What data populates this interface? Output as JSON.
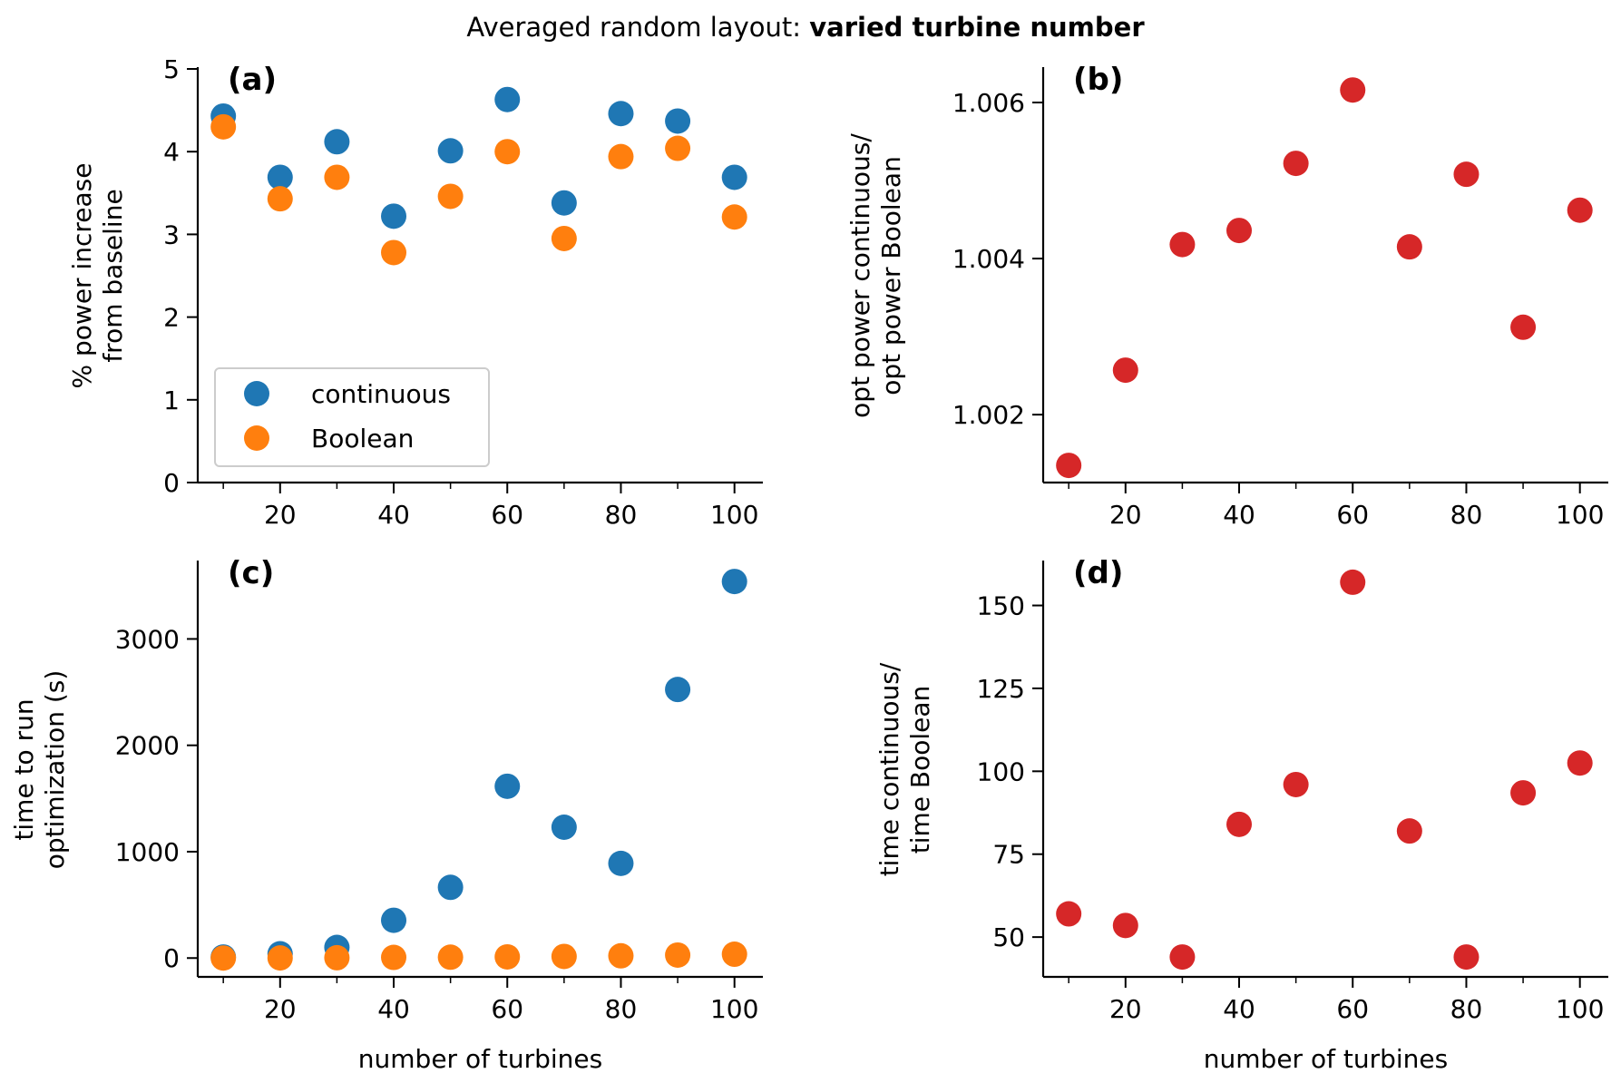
{
  "figure": {
    "title_prefix": "Averaged random layout: ",
    "title_bold": "varied turbine number"
  },
  "colors": {
    "continuous": "#1f77b4",
    "boolean": "#ff7f0e",
    "ratio": "#d62728"
  },
  "chart_data": [
    {
      "type": "scatter",
      "panel": "(a)",
      "ylabel_lines": [
        "% power increase",
        "from baseline"
      ],
      "xlabel": "",
      "xlim": [
        5.5,
        105
      ],
      "ylim": [
        0,
        5
      ],
      "xticks": [
        20,
        40,
        60,
        80,
        100
      ],
      "minor_xticks": [
        10,
        30,
        50,
        70,
        90
      ],
      "yticks": [
        0,
        1,
        2,
        3,
        4,
        5
      ],
      "ytick_labels": [
        "0",
        "1",
        "2",
        "3",
        "4",
        "5"
      ],
      "legend": {
        "placement": "lower-left",
        "entries": [
          "continuous",
          "Boolean"
        ]
      },
      "series": [
        {
          "name": "continuous",
          "color_key": "continuous",
          "x": [
            10,
            20,
            30,
            40,
            50,
            60,
            70,
            80,
            90,
            100
          ],
          "y": [
            4.43,
            3.69,
            4.12,
            3.22,
            4.01,
            4.63,
            3.38,
            4.46,
            4.37,
            3.69
          ]
        },
        {
          "name": "Boolean",
          "color_key": "boolean",
          "x": [
            10,
            20,
            30,
            40,
            50,
            60,
            70,
            80,
            90,
            100
          ],
          "y": [
            4.3,
            3.43,
            3.69,
            2.78,
            3.46,
            4.0,
            2.95,
            3.94,
            4.04,
            3.21
          ]
        }
      ]
    },
    {
      "type": "scatter",
      "panel": "(b)",
      "ylabel_lines": [
        "opt power continuous/",
        "opt power Boolean"
      ],
      "xlabel": "",
      "xlim": [
        5.5,
        105
      ],
      "ylim": [
        1.00113,
        1.00643
      ],
      "xticks": [
        20,
        40,
        60,
        80,
        100
      ],
      "minor_xticks": [
        10,
        30,
        50,
        70,
        90
      ],
      "yticks": [
        1.002,
        1.004,
        1.006
      ],
      "ytick_labels": [
        "1.002",
        "1.004",
        "1.006"
      ],
      "series": [
        {
          "name": "ratio",
          "color_key": "ratio",
          "x": [
            10,
            20,
            30,
            40,
            50,
            60,
            70,
            80,
            90,
            100
          ],
          "y": [
            1.00135,
            1.00257,
            1.00418,
            1.00436,
            1.00522,
            1.00616,
            1.00415,
            1.00508,
            1.00312,
            1.00462
          ]
        }
      ]
    },
    {
      "type": "scatter",
      "panel": "(c)",
      "ylabel_lines": [
        "time to run",
        "optimization (s)"
      ],
      "xlabel": "number of turbines",
      "xlim": [
        5.5,
        105
      ],
      "ylim": [
        -177,
        3720
      ],
      "xticks": [
        20,
        40,
        60,
        80,
        100
      ],
      "minor_xticks": [
        10,
        30,
        50,
        70,
        90
      ],
      "yticks": [
        0,
        1000,
        2000,
        3000
      ],
      "ytick_labels": [
        "0",
        "1000",
        "2000",
        "3000"
      ],
      "series": [
        {
          "name": "continuous",
          "color_key": "continuous",
          "x": [
            10,
            20,
            30,
            40,
            50,
            60,
            70,
            80,
            90,
            100
          ],
          "y": [
            10,
            40,
            100,
            355,
            665,
            1615,
            1230,
            890,
            2525,
            3540
          ]
        },
        {
          "name": "Boolean",
          "color_key": "boolean",
          "x": [
            10,
            20,
            30,
            40,
            50,
            60,
            70,
            80,
            90,
            100
          ],
          "y": [
            0,
            1,
            3,
            6,
            8,
            11,
            15,
            21,
            28,
            36
          ]
        }
      ]
    },
    {
      "type": "scatter",
      "panel": "(d)",
      "ylabel_lines": [
        "time continuous/",
        "time Boolean"
      ],
      "xlabel": "number of turbines",
      "xlim": [
        5.5,
        105
      ],
      "ylim": [
        38,
        163
      ],
      "xticks": [
        20,
        40,
        60,
        80,
        100
      ],
      "minor_xticks": [
        10,
        30,
        50,
        70,
        90
      ],
      "yticks": [
        50,
        75,
        100,
        125,
        150
      ],
      "ytick_labels": [
        "50",
        "75",
        "100",
        "125",
        "150"
      ],
      "series": [
        {
          "name": "ratio",
          "color_key": "ratio",
          "x": [
            10,
            20,
            30,
            40,
            50,
            60,
            70,
            80,
            90,
            100
          ],
          "y": [
            57,
            53.5,
            44,
            84,
            96,
            157,
            82,
            44,
            93.5,
            102.5
          ]
        }
      ]
    }
  ]
}
